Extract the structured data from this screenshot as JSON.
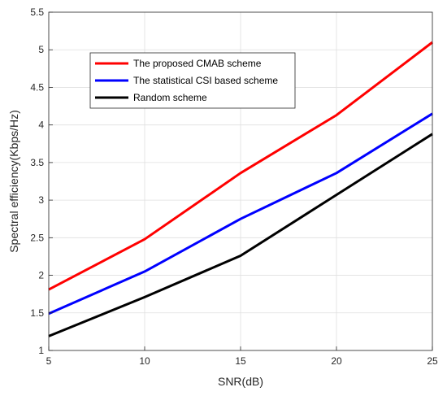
{
  "chart_data": {
    "type": "line",
    "title": "",
    "xlabel": "SNR(dB)",
    "ylabel": "Spectral efficiency(Kbps/Hz)",
    "xlim": [
      5,
      25
    ],
    "ylim": [
      1,
      5.5
    ],
    "x_ticks": [
      "5",
      "10",
      "15",
      "20",
      "25"
    ],
    "y_ticks": [
      "1",
      "1.5",
      "2",
      "2.5",
      "3",
      "3.5",
      "4",
      "4.5",
      "5",
      "5.5"
    ],
    "grid": true,
    "legend_position": "top-left",
    "x": [
      5,
      10,
      15,
      20,
      25
    ],
    "series": [
      {
        "name": "The proposed CMAB scheme",
        "color": "#ff0000",
        "values": [
          1.81,
          2.48,
          3.36,
          4.13,
          5.1
        ]
      },
      {
        "name": "The statistical CSI based scheme",
        "color": "#0000ff",
        "values": [
          1.49,
          2.05,
          2.75,
          3.36,
          4.15
        ]
      },
      {
        "name": "Random scheme",
        "color": "#000000",
        "values": [
          1.19,
          1.71,
          2.26,
          3.07,
          3.88
        ]
      }
    ]
  }
}
